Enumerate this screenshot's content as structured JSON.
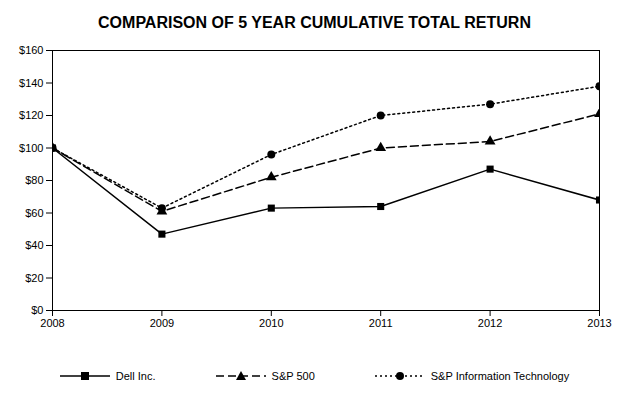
{
  "chart_data": {
    "type": "line",
    "title": "COMPARISON OF 5 YEAR CUMULATIVE TOTAL RETURN",
    "x": [
      2008,
      2009,
      2010,
      2011,
      2012,
      2013
    ],
    "series": [
      {
        "name": "Dell Inc.",
        "color": "#000000",
        "marker": "square",
        "line_style": "solid",
        "values": [
          100,
          47,
          63,
          64,
          87,
          68
        ]
      },
      {
        "name": "S&P 500",
        "color": "#000000",
        "marker": "triangle",
        "line_style": "dashed",
        "values": [
          100,
          61,
          82,
          100,
          104,
          121
        ]
      },
      {
        "name": "S&P Information Technology",
        "color": "#000000",
        "marker": "circle",
        "line_style": "dotted",
        "values": [
          100,
          63,
          96,
          120,
          127,
          138
        ]
      }
    ],
    "xlim": [
      2008,
      2013
    ],
    "xticks": [
      2008,
      2009,
      2010,
      2011,
      2012,
      2013
    ],
    "ylim": [
      0,
      160
    ],
    "yticks": [
      {
        "value": 0,
        "label": "$0"
      },
      {
        "value": 20,
        "label": "$20"
      },
      {
        "value": 40,
        "label": "$40"
      },
      {
        "value": 60,
        "label": "$60"
      },
      {
        "value": 80,
        "label": "$80"
      },
      {
        "value": 100,
        "label": "$100"
      },
      {
        "value": 120,
        "label": "$120"
      },
      {
        "value": 140,
        "label": "$140"
      },
      {
        "value": 160,
        "label": "$160"
      }
    ],
    "grid": false,
    "legend": "bottom"
  }
}
